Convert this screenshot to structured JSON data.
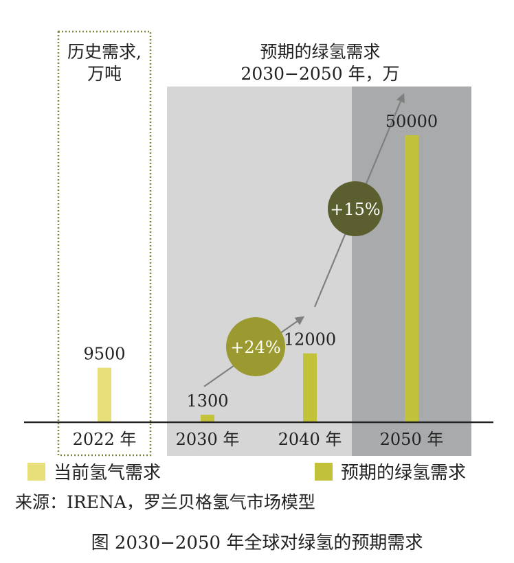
{
  "chart_data": {
    "type": "bar",
    "colors": {
      "current": "#e6df7a",
      "projected": "#c2c23a",
      "panel_light": "#d6d6d6",
      "panel_dark": "#a8aaac",
      "bubble_24": "#9a9a30",
      "bubble_15": "#5b5e2e",
      "arrow": "#7f7f7f",
      "historic_box": "#7a8a45"
    },
    "historic_title": [
      "历史需求,",
      "万吨"
    ],
    "projected_title": [
      "预期的绿氢需求",
      "2030−2050 年，万"
    ],
    "categories": [
      "2022 年",
      "2030 年",
      "2040 年",
      "2050 年"
    ],
    "values": [
      9500,
      1300,
      12000,
      50000
    ],
    "value_labels": [
      "9500",
      "1300",
      "12000",
      "50000"
    ],
    "series_kind": [
      "current",
      "projected",
      "projected",
      "projected"
    ],
    "growth_labels": [
      {
        "text": "+24%",
        "between": [
          "2030 年",
          "2040 年"
        ]
      },
      {
        "text": "+15%",
        "between": [
          "2040 年",
          "2050 年"
        ]
      }
    ],
    "legend": [
      {
        "label": "当前氢气需求",
        "kind": "current"
      },
      {
        "label": "预期的绿氢需求",
        "kind": "projected"
      }
    ],
    "source": "来源：IRENA，罗兰贝格氢气市场模型",
    "caption": "图  2030−2050 年全球对绿氢的预期需求"
  }
}
